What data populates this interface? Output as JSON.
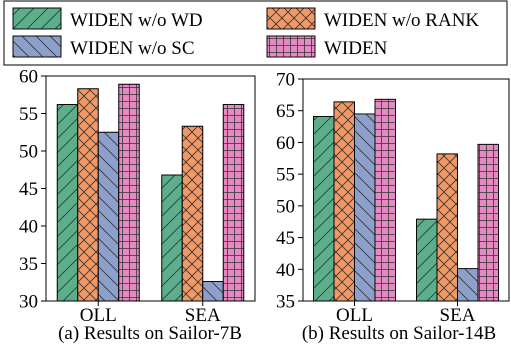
{
  "legend": {
    "placement": "top",
    "entries": [
      {
        "label": "WIDEN w/o WD",
        "color": "#5DAE8B",
        "hatch": "diagonal-forward"
      },
      {
        "label": "WIDEN w/o RANK",
        "color": "#F09866",
        "hatch": "cross-diagonal"
      },
      {
        "label": "WIDEN w/o SC",
        "color": "#8DA0CB",
        "hatch": "diagonal-backward"
      },
      {
        "label": "WIDEN",
        "color": "#E78AC3",
        "hatch": "grid"
      }
    ]
  },
  "chart_data": [
    {
      "type": "bar",
      "caption": "(a) Results on Sailor-7B",
      "categories": [
        "OLL",
        "SEA"
      ],
      "series": [
        {
          "name": "WIDEN w/o WD",
          "values": [
            56.2,
            46.8
          ]
        },
        {
          "name": "WIDEN w/o RANK",
          "values": [
            58.3,
            53.3
          ]
        },
        {
          "name": "WIDEN w/o SC",
          "values": [
            52.5,
            32.6
          ]
        },
        {
          "name": "WIDEN",
          "values": [
            58.9,
            56.2
          ]
        }
      ],
      "ylim": [
        30,
        60
      ],
      "yticks": [
        30,
        35,
        40,
        45,
        50,
        55,
        60
      ],
      "grid": false
    },
    {
      "type": "bar",
      "caption": "(b) Results on Sailor-14B",
      "categories": [
        "OLL",
        "SEA"
      ],
      "series": [
        {
          "name": "WIDEN w/o WD",
          "values": [
            64.1,
            47.9
          ]
        },
        {
          "name": "WIDEN w/o RANK",
          "values": [
            66.4,
            58.2
          ]
        },
        {
          "name": "WIDEN w/o SC",
          "values": [
            64.5,
            40.1
          ]
        },
        {
          "name": "WIDEN",
          "values": [
            66.8,
            59.7
          ]
        }
      ],
      "ylim": [
        35,
        70
      ],
      "yticks": [
        35,
        40,
        45,
        50,
        55,
        60,
        65,
        70
      ],
      "grid": false
    }
  ]
}
